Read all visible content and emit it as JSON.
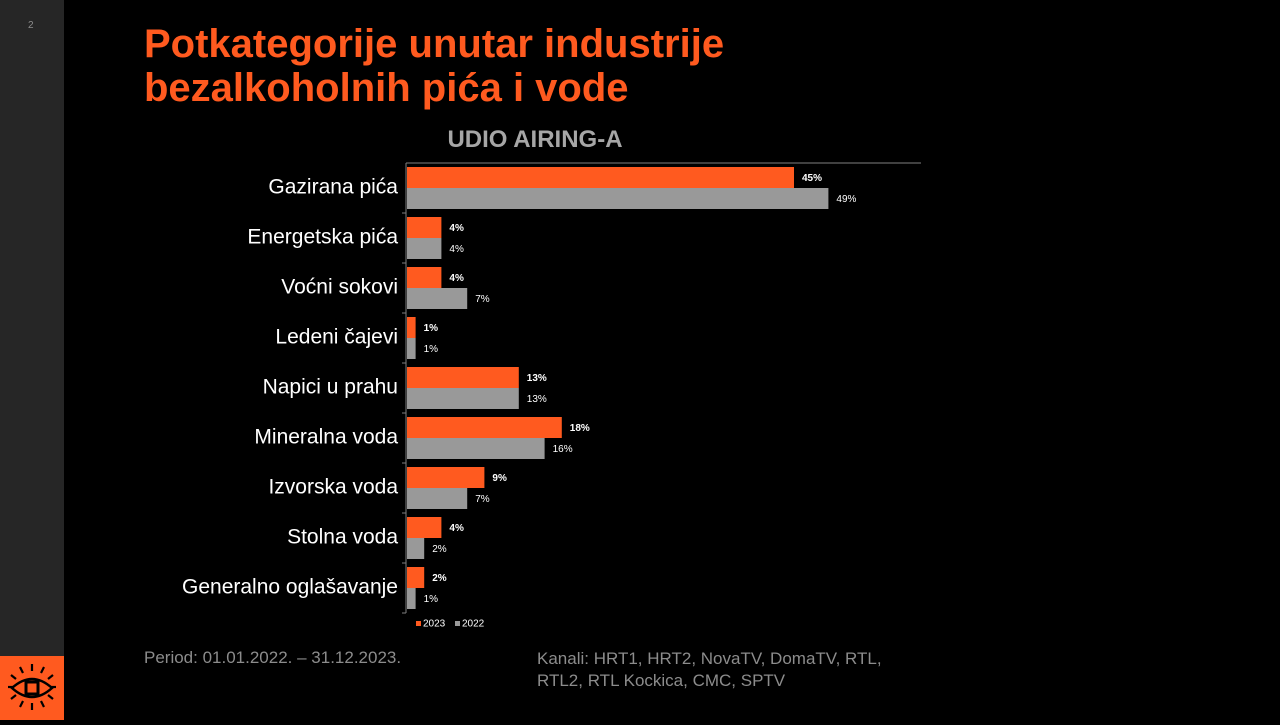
{
  "slide": {
    "page_number": "2",
    "title_line1": "Potkategorije unutar industrije",
    "title_line2": "bezalkoholnih pića i vode",
    "period": "Period: 01.01.2022. – 31.12.2023.",
    "channels_line1": "Kanali: HRT1, HRT2, NovaTV, DomaTV, RTL,",
    "channels_line2": "RTL2, RTL Kockica, CMC, SPTV"
  },
  "colors": {
    "accent": "#ff5a1f",
    "series_2022": "#999999",
    "background": "#000000",
    "sidebar": "#262626"
  },
  "chart_data": {
    "type": "bar",
    "orientation": "horizontal",
    "title": "UDIO AIRING-A",
    "categories": [
      "Gazirana pića",
      "Energetska pića",
      "Voćni sokovi",
      "Ledeni čajevi",
      "Napici u prahu",
      "Mineralna voda",
      "Izvorska voda",
      "Stolna voda",
      "Generalno oglašavanje"
    ],
    "series": [
      {
        "name": "2023",
        "color": "#ff5a1f",
        "values": [
          45,
          4,
          4,
          1,
          13,
          18,
          9,
          4,
          2
        ],
        "labels": [
          "45%",
          "4%",
          "4%",
          "1%",
          "13%",
          "18%",
          "9%",
          "4%",
          "2%"
        ]
      },
      {
        "name": "2022",
        "color": "#999999",
        "values": [
          49,
          4,
          7,
          1,
          13,
          16,
          7,
          2,
          1
        ],
        "labels": [
          "49%",
          "4%",
          "7%",
          "1%",
          "13%",
          "16%",
          "7%",
          "2%",
          "1%"
        ]
      }
    ],
    "xlim": [
      0,
      60
    ],
    "grid": false,
    "legend_position": "bottom-left"
  }
}
